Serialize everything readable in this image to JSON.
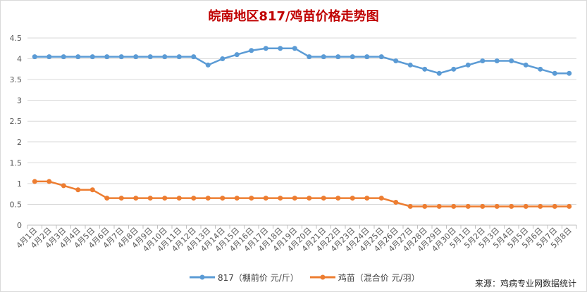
{
  "chart_data": {
    "type": "line",
    "title": "皖南地区817/鸡苗价格走势图",
    "xlabel": "",
    "ylabel": "",
    "ylim": [
      0,
      4.5
    ],
    "yticks": [
      "0",
      "0.5",
      "1",
      "1.5",
      "2",
      "2.5",
      "3",
      "3.5",
      "4",
      "4.5"
    ],
    "grid": true,
    "legend_position": "bottom",
    "categories": [
      "4月1日",
      "4月2日",
      "4月3日",
      "4月4日",
      "4月5日",
      "4月6日",
      "4月7日",
      "4月8日",
      "4月9日",
      "4月10日",
      "4月11日",
      "4月12日",
      "4月13日",
      "4月14日",
      "4月15日",
      "4月16日",
      "4月17日",
      "4月18日",
      "4月19日",
      "4月20日",
      "4月21日",
      "4月22日",
      "4月23日",
      "4月24日",
      "4月25日",
      "4月26日",
      "4月27日",
      "4月28日",
      "4月29日",
      "4月30日",
      "5月1日",
      "5月2日",
      "5月3日",
      "5月4日",
      "5月5日",
      "5月6日",
      "5月7日",
      "5月8日"
    ],
    "series": [
      {
        "name": "817（棚前价 元/斤）",
        "color": "#5b9bd5",
        "values": [
          4.05,
          4.05,
          4.05,
          4.05,
          4.05,
          4.05,
          4.05,
          4.05,
          4.05,
          4.05,
          4.05,
          4.05,
          3.85,
          4.0,
          4.1,
          4.2,
          4.25,
          4.25,
          4.25,
          4.05,
          4.05,
          4.05,
          4.05,
          4.05,
          4.05,
          3.95,
          3.85,
          3.75,
          3.65,
          3.75,
          3.85,
          3.95,
          3.95,
          3.95,
          3.85,
          3.75,
          3.65,
          3.65
        ]
      },
      {
        "name": "鸡苗（混合价 元/羽）",
        "color": "#ed7d31",
        "values": [
          1.05,
          1.05,
          0.95,
          0.85,
          0.85,
          0.65,
          0.65,
          0.65,
          0.65,
          0.65,
          0.65,
          0.65,
          0.65,
          0.65,
          0.65,
          0.65,
          0.65,
          0.65,
          0.65,
          0.65,
          0.65,
          0.65,
          0.65,
          0.65,
          0.65,
          0.55,
          0.45,
          0.45,
          0.45,
          0.45,
          0.45,
          0.45,
          0.45,
          0.45,
          0.45,
          0.45,
          0.45,
          0.45
        ]
      }
    ]
  },
  "source_note": "来源：鸡病专业网数据统计"
}
